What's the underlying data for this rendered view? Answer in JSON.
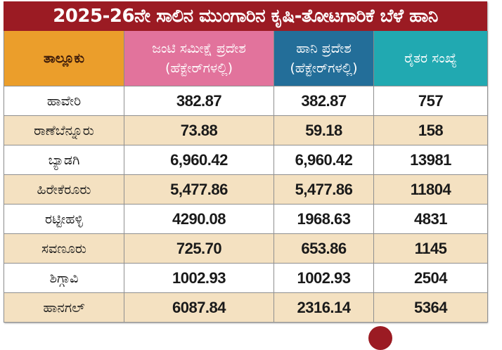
{
  "title": "2025-26ನೇ ಸಾಲಿನ ಮುಂಗಾರಿನ ಕೃಷಿ-ತೋಟಗಾರಿಕೆ ಬೆಳೆ ಹಾನಿ",
  "colors": {
    "title_bg": "#9b1b23",
    "col_taluk": "#eb9e2b",
    "col_joint_survey": "#e2739c",
    "col_loss_area": "#236e99",
    "col_farmers": "#21a9b1",
    "row_alt": "#f4e1c1"
  },
  "headers": {
    "taluk": "ತಾಲ್ಲೂಕು",
    "joint_survey_area": "ಜಂಟಿ ಸಮೀಕ್ಷೆ ಪ್ರದೇಶ",
    "joint_survey_unit": "(ಹೆಕ್ಟೇರ್‌ಗಳಲ್ಲಿ)",
    "loss_area": "ಹಾನಿ ಪ್ರದೇಶ",
    "loss_area_unit": "(ಹೆಕ್ಟೇರ್‌ಗಳಲ್ಲಿ)",
    "farmers_count": "ರೈತರ ಸಂಖ್ಯೆ"
  },
  "rows": [
    {
      "taluk": "ಹಾವೇರಿ",
      "joint_survey": "382.87",
      "loss_area": "382.87",
      "farmers": "757"
    },
    {
      "taluk": "ರಾಣೆಬೆನ್ನೂರು",
      "joint_survey": "73.88",
      "loss_area": "59.18",
      "farmers": "158"
    },
    {
      "taluk": "ಬ್ಯಾಡಗಿ",
      "joint_survey": "6,960.42",
      "loss_area": "6,960.42",
      "farmers": "13981"
    },
    {
      "taluk": "ಹಿರೇಕೆರೂರು",
      "joint_survey": "5,477.86",
      "loss_area": "5,477.86",
      "farmers": "11804"
    },
    {
      "taluk": "ರಟ್ಟೀಹಳ್ಳಿ",
      "joint_survey": "4290.08",
      "loss_area": "1968.63",
      "farmers": "4831"
    },
    {
      "taluk": "ಸವಣೂರು",
      "joint_survey": "725.70",
      "loss_area": "653.86",
      "farmers": "1145"
    },
    {
      "taluk": "ಶಿಗ್ಗಾವಿ",
      "joint_survey": "1002.93",
      "loss_area": "1002.93",
      "farmers": "2504"
    },
    {
      "taluk": "ಹಾನಗಲ್",
      "joint_survey": "6087.84",
      "loss_area": "2316.14",
      "farmers": "5364"
    }
  ]
}
